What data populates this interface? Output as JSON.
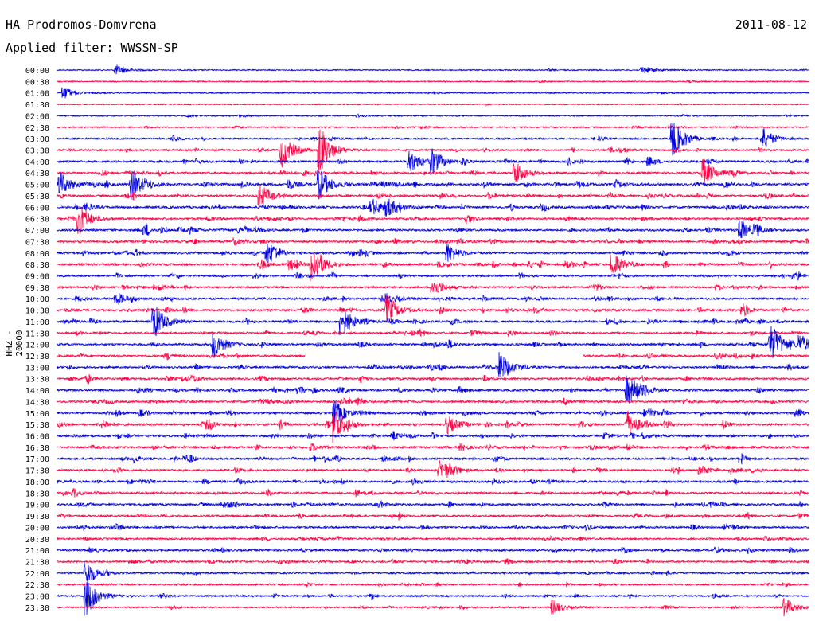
{
  "header": {
    "station": "HA Prodromos-Domvrena",
    "date": "2011-08-12",
    "filter": "Applied filter: WWSSN-SP",
    "channel": "HHZ - 20000"
  },
  "colors": {
    "even": "#0000dd",
    "odd": "#ff0044"
  },
  "chart_data": {
    "type": "line",
    "title": "HA Prodromos-Domvrena",
    "rows": [
      "00:00",
      "00:30",
      "01:00",
      "01:30",
      "02:00",
      "02:30",
      "03:00",
      "03:30",
      "04:00",
      "04:30",
      "05:00",
      "05:30",
      "06:00",
      "06:30",
      "07:00",
      "07:30",
      "08:00",
      "08:30",
      "09:00",
      "09:30",
      "10:00",
      "10:30",
      "11:00",
      "11:30",
      "12:00",
      "12:30",
      "13:00",
      "13:30",
      "14:00",
      "14:30",
      "15:00",
      "15:30",
      "16:00",
      "16:30",
      "17:00",
      "17:30",
      "18:00",
      "18:30",
      "19:00",
      "19:30",
      "20:00",
      "20:30",
      "21:00",
      "21:30",
      "22:00",
      "22:30",
      "23:00",
      "23:30"
    ],
    "activity": [
      0.05,
      0.04,
      0.05,
      0.04,
      0.12,
      0.18,
      0.3,
      0.4,
      0.55,
      0.55,
      0.7,
      0.55,
      0.6,
      0.5,
      0.55,
      0.55,
      0.55,
      0.6,
      0.45,
      0.45,
      0.5,
      0.55,
      0.55,
      0.5,
      0.55,
      0.45,
      0.5,
      0.5,
      0.55,
      0.55,
      0.6,
      0.6,
      0.6,
      0.6,
      0.55,
      0.55,
      0.55,
      0.5,
      0.5,
      0.45,
      0.45,
      0.4,
      0.45,
      0.4,
      0.3,
      0.3,
      0.3,
      0.25
    ],
    "gap": {
      "row": "12:30",
      "start_fraction": 0.33,
      "end_fraction": 0.7
    },
    "events": [
      {
        "row": "00:00",
        "x": 0.08,
        "amp": 1.0
      },
      {
        "row": "00:00",
        "x": 0.78,
        "amp": 0.8
      },
      {
        "row": "01:00",
        "x": 0.01,
        "amp": 1.2
      },
      {
        "row": "03:00",
        "x": 0.94,
        "amp": 2.2
      },
      {
        "row": "03:00",
        "x": 0.82,
        "amp": 4.0
      },
      {
        "row": "03:30",
        "x": 0.3,
        "amp": 3.5
      },
      {
        "row": "03:30",
        "x": 0.35,
        "amp": 5.0
      },
      {
        "row": "04:00",
        "x": 0.47,
        "amp": 2.5
      },
      {
        "row": "04:00",
        "x": 0.5,
        "amp": 2.0
      },
      {
        "row": "04:30",
        "x": 0.61,
        "amp": 2.5
      },
      {
        "row": "04:30",
        "x": 0.86,
        "amp": 3.0
      },
      {
        "row": "05:00",
        "x": 0.0,
        "amp": 3.5
      },
      {
        "row": "05:00",
        "x": 0.1,
        "amp": 3.0
      },
      {
        "row": "05:00",
        "x": 0.35,
        "amp": 3.0
      },
      {
        "row": "05:30",
        "x": 0.27,
        "amp": 2.5
      },
      {
        "row": "06:00",
        "x": 0.42,
        "amp": 1.8
      },
      {
        "row": "06:00",
        "x": 0.44,
        "amp": 1.5
      },
      {
        "row": "06:30",
        "x": 0.03,
        "amp": 3.0
      },
      {
        "row": "07:00",
        "x": 0.91,
        "amp": 2.0
      },
      {
        "row": "08:00",
        "x": 0.28,
        "amp": 2.2
      },
      {
        "row": "08:00",
        "x": 0.52,
        "amp": 2.0
      },
      {
        "row": "08:30",
        "x": 0.34,
        "amp": 4.0
      },
      {
        "row": "08:30",
        "x": 0.74,
        "amp": 2.5
      },
      {
        "row": "09:30",
        "x": 0.5,
        "amp": 2.0
      },
      {
        "row": "10:00",
        "x": 0.08,
        "amp": 1.2
      },
      {
        "row": "10:30",
        "x": 0.44,
        "amp": 3.0
      },
      {
        "row": "11:00",
        "x": 0.13,
        "amp": 3.5
      },
      {
        "row": "11:00",
        "x": 0.38,
        "amp": 3.0
      },
      {
        "row": "12:00",
        "x": 0.21,
        "amp": 2.5
      },
      {
        "row": "12:00",
        "x": 0.95,
        "amp": 3.5
      },
      {
        "row": "12:00",
        "x": 0.99,
        "amp": 1.8
      },
      {
        "row": "13:00",
        "x": 0.59,
        "amp": 3.0
      },
      {
        "row": "14:00",
        "x": 0.76,
        "amp": 3.0
      },
      {
        "row": "15:00",
        "x": 0.37,
        "amp": 2.5
      },
      {
        "row": "15:30",
        "x": 0.37,
        "amp": 3.5
      },
      {
        "row": "15:30",
        "x": 0.52,
        "amp": 1.8
      },
      {
        "row": "15:30",
        "x": 0.76,
        "amp": 2.5
      },
      {
        "row": "17:30",
        "x": 0.51,
        "amp": 2.0
      },
      {
        "row": "22:00",
        "x": 0.04,
        "amp": 2.5
      },
      {
        "row": "23:00",
        "x": 0.04,
        "amp": 4.0
      },
      {
        "row": "23:30",
        "x": 0.66,
        "amp": 1.5
      },
      {
        "row": "23:30",
        "x": 0.97,
        "amp": 1.8
      }
    ]
  }
}
